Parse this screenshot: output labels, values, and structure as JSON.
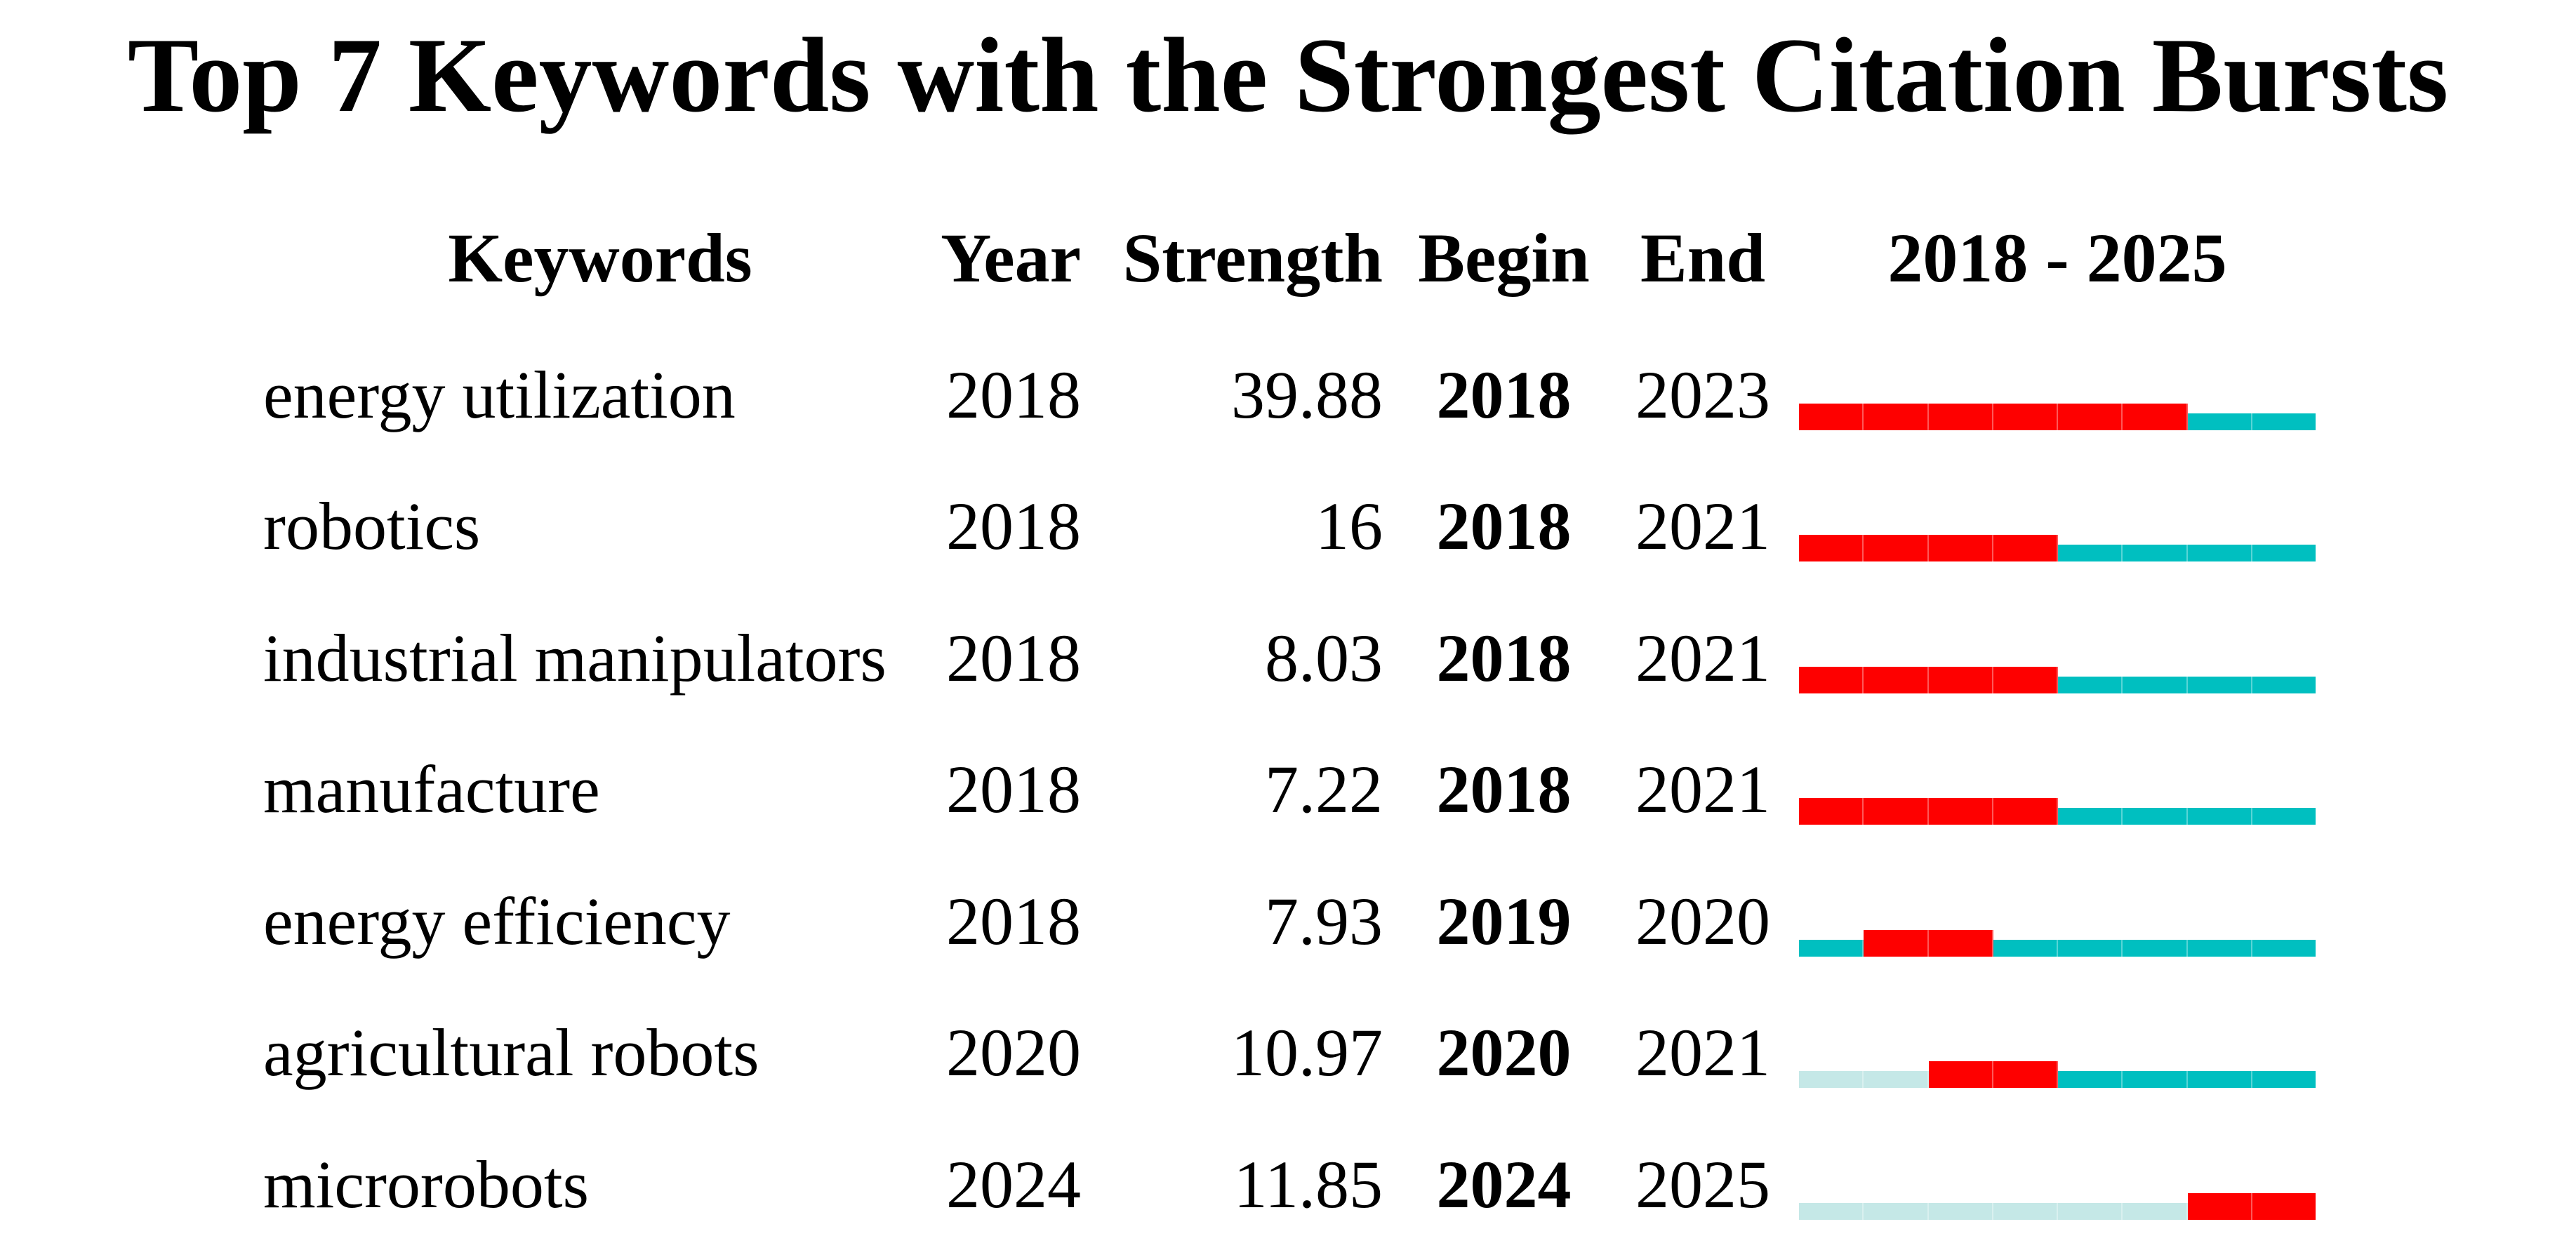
{
  "title": "Top 7 Keywords with the Strongest Citation Bursts",
  "header": {
    "keywords": "Keywords",
    "year": "Year",
    "strength": "Strength",
    "begin": "Begin",
    "end": "End",
    "period": "2018 - 2025"
  },
  "chart_data": {
    "type": "table",
    "subtype": "citation-burst-timeline",
    "title": "Top 7 Keywords with the Strongest Citation Bursts",
    "columns": [
      "Keywords",
      "Year",
      "Strength",
      "Begin",
      "End",
      "2018 - 2025"
    ],
    "period": {
      "start": 2018,
      "end": 2025
    },
    "rows": [
      {
        "keyword": "energy utilization",
        "year": "2018",
        "strength": "39.88",
        "begin": "2018",
        "end": "2023"
      },
      {
        "keyword": "robotics",
        "year": "2018",
        "strength": "16",
        "begin": "2018",
        "end": "2021"
      },
      {
        "keyword": "industrial manipulators",
        "year": "2018",
        "strength": "8.03",
        "begin": "2018",
        "end": "2021"
      },
      {
        "keyword": "manufacture",
        "year": "2018",
        "strength": "7.22",
        "begin": "2018",
        "end": "2021"
      },
      {
        "keyword": "energy efficiency",
        "year": "2018",
        "strength": "7.93",
        "begin": "2019",
        "end": "2020"
      },
      {
        "keyword": "agricultural robots",
        "year": "2020",
        "strength": "10.97",
        "begin": "2020",
        "end": "2021"
      },
      {
        "keyword": "microrobots",
        "year": "2024",
        "strength": "11.85",
        "begin": "2024",
        "end": "2025"
      }
    ],
    "colors": {
      "burst": "#fe0000",
      "active": "#00bfc0",
      "inactive": "#c5e8e7"
    },
    "legend_position": "none",
    "grid": false
  }
}
